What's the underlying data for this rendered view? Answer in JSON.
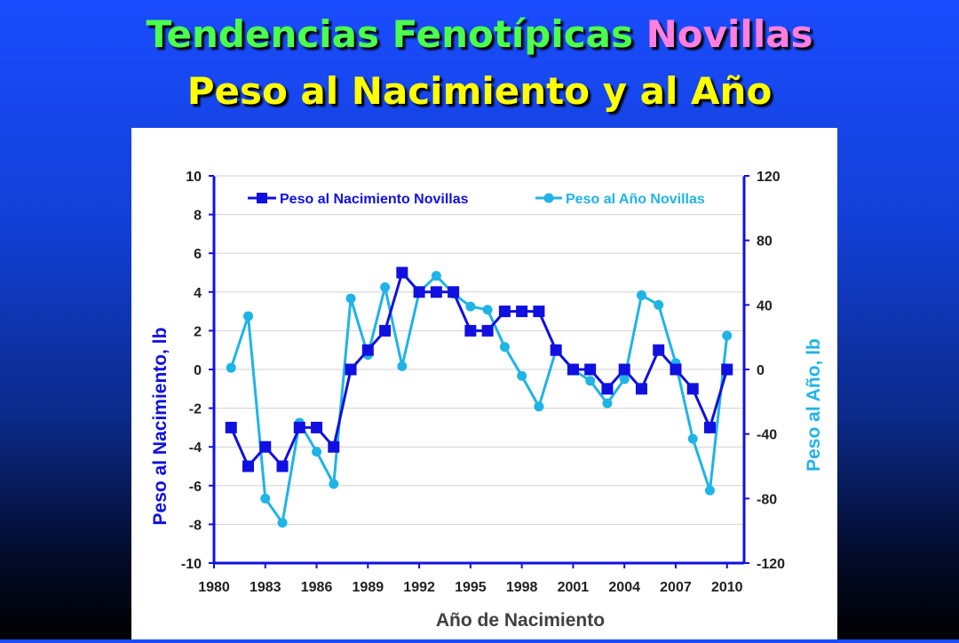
{
  "slide": {
    "title_part1": "Tendencias Fenotípicas",
    "title_part2": "Novillas",
    "subtitle": "Peso al Nacimiento y al Año"
  },
  "colors": {
    "birth_series": "#1010e0",
    "year_series": "#1fb4e6",
    "title_green": "#4cff4c",
    "title_pink": "#ff7ee0",
    "subtitle_yellow": "#ffff00"
  },
  "chart_data": {
    "type": "line",
    "xlabel": "Año de Nacimiento",
    "ylabel_left": "Peso al Nacimiento, lb",
    "ylabel_right": "Peso al Año, lb",
    "x_ticks": [
      1980,
      1983,
      1986,
      1989,
      1992,
      1995,
      1998,
      2001,
      2004,
      2007,
      2010
    ],
    "y_left_ticks": [
      10,
      8,
      6,
      4,
      2,
      0,
      -2,
      -4,
      -6,
      -8,
      -10
    ],
    "y_right_ticks": [
      120,
      80,
      40,
      0,
      -40,
      -80,
      -120
    ],
    "xlim": [
      1980,
      2011
    ],
    "ylim_left": [
      -10,
      10
    ],
    "ylim_right": [
      -120,
      120
    ],
    "grid": "horizontal",
    "legend": "top",
    "series": [
      {
        "name": "Peso al Nacimiento Novillas",
        "axis": "left",
        "marker": "square",
        "x": [
          1981,
          1982,
          1983,
          1984,
          1985,
          1986,
          1987,
          1988,
          1989,
          1990,
          1991,
          1992,
          1993,
          1994,
          1995,
          1996,
          1997,
          1998,
          1999,
          2000,
          2001,
          2002,
          2003,
          2004,
          2005,
          2006,
          2007,
          2008,
          2009,
          2010
        ],
        "values": [
          -3,
          -5,
          -4,
          -5,
          -3,
          -3,
          -4,
          0,
          1,
          2,
          5,
          4,
          4,
          4,
          2,
          2,
          3,
          3,
          3,
          1,
          0,
          0,
          -1,
          0,
          -1,
          1,
          0,
          -1,
          -3,
          0
        ]
      },
      {
        "name": "Peso al Año Novillas",
        "axis": "right",
        "marker": "circle",
        "x": [
          1981,
          1982,
          1983,
          1984,
          1985,
          1986,
          1987,
          1988,
          1989,
          1990,
          1991,
          1992,
          1993,
          1994,
          1995,
          1996,
          1997,
          1998,
          1999,
          2000,
          2001,
          2002,
          2003,
          2004,
          2005,
          2006,
          2007,
          2008,
          2009,
          2010
        ],
        "values": [
          1,
          33,
          -80,
          -95,
          -33,
          -51,
          -71,
          44,
          9,
          51,
          2,
          48,
          58,
          47,
          39,
          37,
          14,
          -4,
          -23,
          12,
          0,
          -7,
          -21,
          -6,
          46,
          40,
          4,
          -43,
          -75,
          21
        ]
      }
    ]
  }
}
